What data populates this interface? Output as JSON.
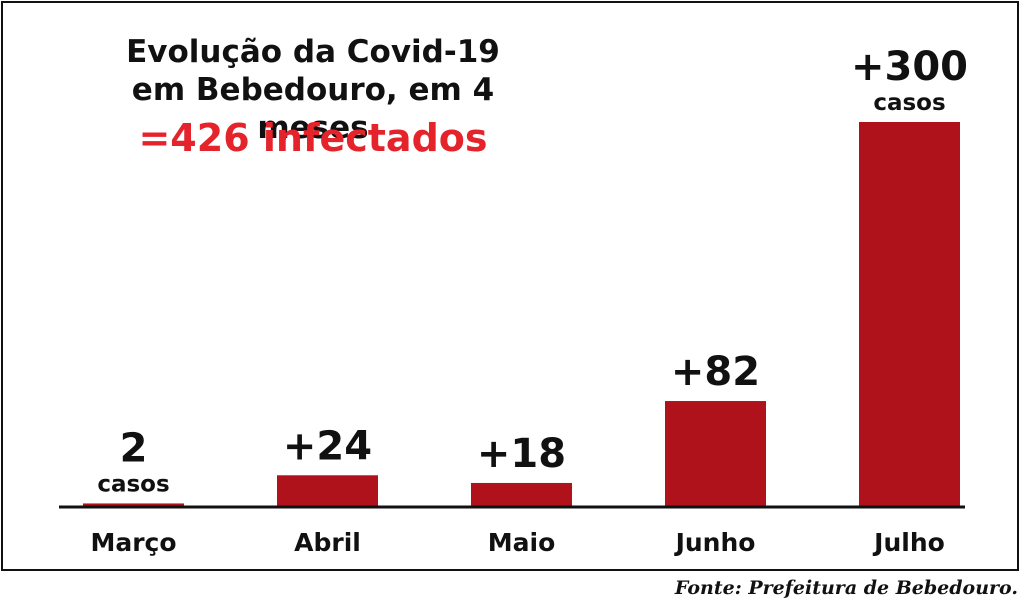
{
  "chart_data": {
    "type": "bar",
    "title": "Evolução da Covid-19",
    "subtitle": "em Bebedouro, em 4 meses",
    "total": "=426 infectados",
    "categories": [
      "Março",
      "Abril",
      "Maio",
      "Junho",
      "Julho"
    ],
    "values": [
      2,
      24,
      18,
      82,
      300
    ],
    "value_labels": [
      "2",
      "+24",
      "+18",
      "+82",
      "+300"
    ],
    "unit_labels": [
      "casos",
      "",
      "",
      "",
      "casos"
    ],
    "ylim": [
      0,
      300
    ],
    "grid": false,
    "bar_color": "#b0121b",
    "total_color": "#e4232b"
  },
  "source": "Fonte: Prefeitura de Bebedouro."
}
